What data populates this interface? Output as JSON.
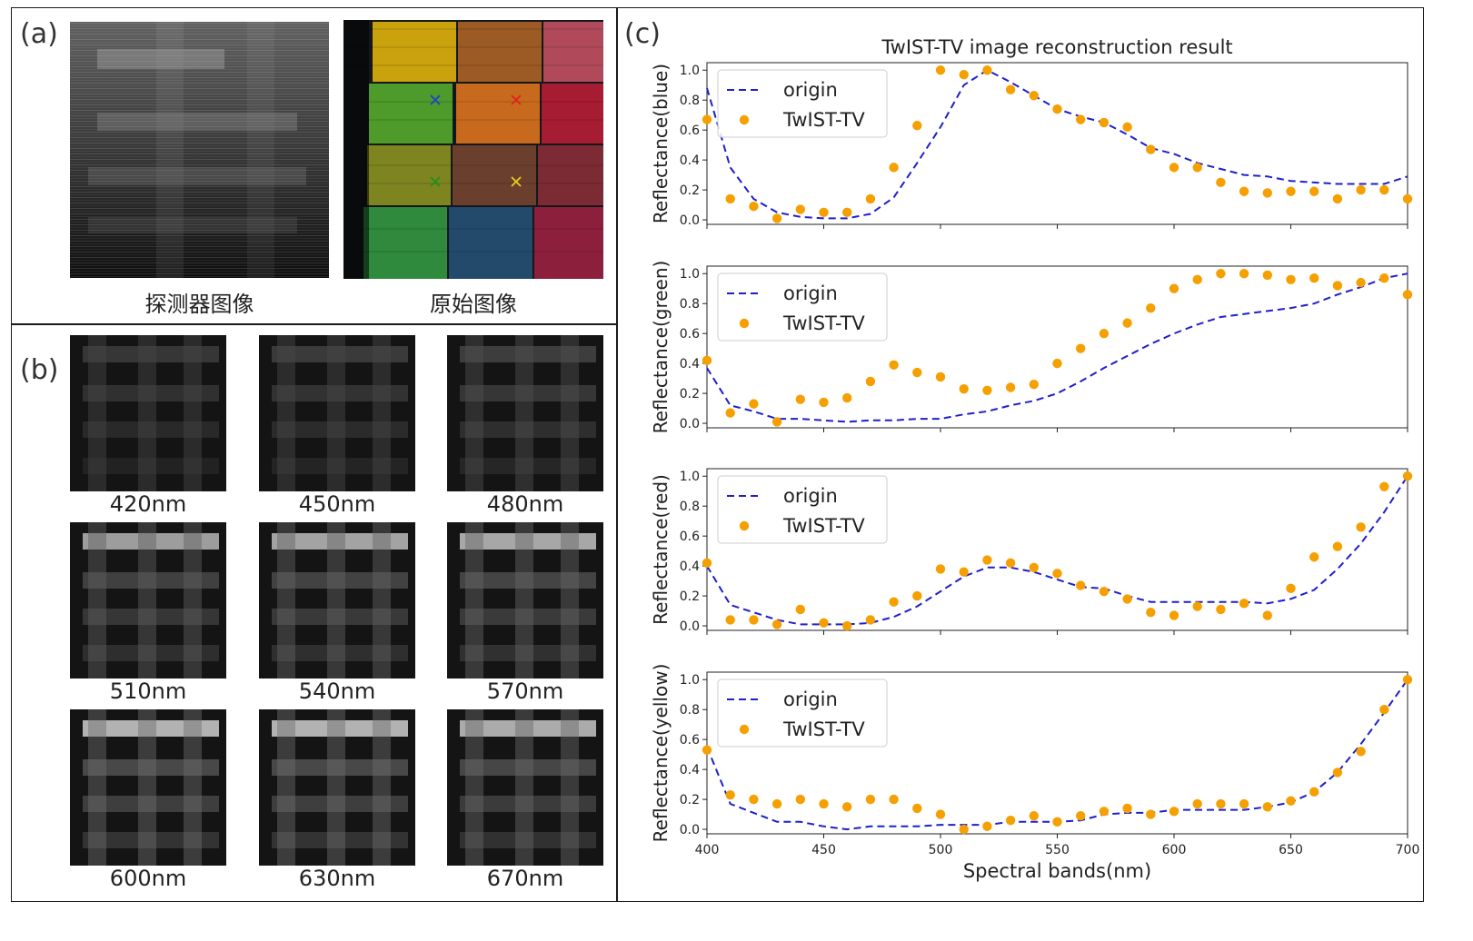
{
  "panels": {
    "a": {
      "label": "(a)",
      "detector_caption": "探测器图像",
      "original_caption": "原始图像",
      "marker_colors": [
        "#1f3fd0",
        "#e02020",
        "#1f8f1f",
        "#e8d020"
      ]
    },
    "b": {
      "label": "(b)",
      "bands": [
        "420nm",
        "450nm",
        "480nm",
        "510nm",
        "540nm",
        "570nm",
        "600nm",
        "630nm",
        "670nm"
      ]
    },
    "c": {
      "label": "(c)"
    }
  },
  "chart_data": [
    {
      "type": "line",
      "title": "TwIST-TV image reconstruction result",
      "ylabel": "Reflectance(blue)",
      "xlabel": "",
      "xlim": [
        400,
        700
      ],
      "ylim": [
        -0.03,
        1.05
      ],
      "yticks": [
        "0.0",
        "0.2",
        "0.4",
        "0.6",
        "0.8",
        "1.0"
      ],
      "legend": "upper-left",
      "series": [
        {
          "name": "origin",
          "style": "dashed",
          "color": "#1f1fcc",
          "x": [
            400,
            410,
            420,
            430,
            440,
            450,
            460,
            470,
            480,
            490,
            500,
            510,
            520,
            530,
            540,
            550,
            560,
            570,
            580,
            590,
            600,
            610,
            620,
            630,
            640,
            650,
            660,
            670,
            680,
            690,
            700
          ],
          "y": [
            0.88,
            0.35,
            0.14,
            0.05,
            0.02,
            0.01,
            0.01,
            0.04,
            0.15,
            0.38,
            0.62,
            0.9,
            1.0,
            0.92,
            0.83,
            0.74,
            0.69,
            0.65,
            0.57,
            0.48,
            0.44,
            0.38,
            0.34,
            0.3,
            0.29,
            0.26,
            0.25,
            0.24,
            0.24,
            0.24,
            0.29
          ]
        },
        {
          "name": "TwIST-TV",
          "style": "marker",
          "color": "#f5a000",
          "x": [
            400,
            410,
            420,
            430,
            440,
            450,
            460,
            470,
            480,
            490,
            500,
            510,
            520,
            530,
            540,
            550,
            560,
            570,
            580,
            590,
            600,
            610,
            620,
            630,
            640,
            650,
            660,
            670,
            680,
            690,
            700
          ],
          "y": [
            0.67,
            0.14,
            0.09,
            0.01,
            0.07,
            0.05,
            0.05,
            0.14,
            0.35,
            0.63,
            1.0,
            0.97,
            1.0,
            0.87,
            0.83,
            0.74,
            0.67,
            0.65,
            0.62,
            0.47,
            0.35,
            0.35,
            0.25,
            0.19,
            0.18,
            0.19,
            0.19,
            0.14,
            0.2,
            0.2,
            0.14
          ]
        }
      ]
    },
    {
      "type": "line",
      "title": "",
      "ylabel": "Reflectance(green)",
      "xlabel": "",
      "xlim": [
        400,
        700
      ],
      "ylim": [
        -0.03,
        1.05
      ],
      "yticks": [
        "0.0",
        "0.2",
        "0.4",
        "0.6",
        "0.8",
        "1.0"
      ],
      "legend": "upper-left",
      "series": [
        {
          "name": "origin",
          "style": "dashed",
          "color": "#1f1fcc",
          "x": [
            400,
            410,
            420,
            430,
            440,
            450,
            460,
            470,
            480,
            490,
            500,
            510,
            520,
            530,
            540,
            550,
            560,
            570,
            580,
            590,
            600,
            610,
            620,
            630,
            640,
            650,
            660,
            670,
            680,
            690,
            700
          ],
          "y": [
            0.37,
            0.12,
            0.08,
            0.03,
            0.03,
            0.02,
            0.01,
            0.02,
            0.02,
            0.03,
            0.03,
            0.06,
            0.08,
            0.12,
            0.15,
            0.2,
            0.28,
            0.37,
            0.45,
            0.53,
            0.6,
            0.66,
            0.71,
            0.73,
            0.75,
            0.77,
            0.8,
            0.86,
            0.91,
            0.97,
            1.0
          ]
        },
        {
          "name": "TwIST-TV",
          "style": "marker",
          "color": "#f5a000",
          "x": [
            400,
            410,
            420,
            430,
            440,
            450,
            460,
            470,
            480,
            490,
            500,
            510,
            520,
            530,
            540,
            550,
            560,
            570,
            580,
            590,
            600,
            610,
            620,
            630,
            640,
            650,
            660,
            670,
            680,
            690,
            700
          ],
          "y": [
            0.42,
            0.07,
            0.13,
            0.01,
            0.16,
            0.14,
            0.17,
            0.28,
            0.39,
            0.34,
            0.31,
            0.23,
            0.22,
            0.24,
            0.26,
            0.4,
            0.5,
            0.6,
            0.67,
            0.77,
            0.9,
            0.96,
            1.0,
            1.0,
            0.99,
            0.96,
            0.97,
            0.92,
            0.94,
            0.97,
            0.86
          ]
        }
      ]
    },
    {
      "type": "line",
      "title": "",
      "ylabel": "Reflectance(red)",
      "xlabel": "",
      "xlim": [
        400,
        700
      ],
      "ylim": [
        -0.03,
        1.05
      ],
      "yticks": [
        "0.0",
        "0.2",
        "0.4",
        "0.6",
        "0.8",
        "1.0"
      ],
      "legend": "upper-left",
      "series": [
        {
          "name": "origin",
          "style": "dashed",
          "color": "#1f1fcc",
          "x": [
            400,
            410,
            420,
            430,
            440,
            450,
            460,
            470,
            480,
            490,
            500,
            510,
            520,
            530,
            540,
            550,
            560,
            570,
            580,
            590,
            600,
            610,
            620,
            630,
            640,
            650,
            660,
            670,
            680,
            690,
            700
          ],
          "y": [
            0.4,
            0.14,
            0.09,
            0.04,
            0.01,
            0.01,
            0.01,
            0.02,
            0.06,
            0.13,
            0.23,
            0.33,
            0.39,
            0.39,
            0.36,
            0.31,
            0.26,
            0.25,
            0.2,
            0.16,
            0.16,
            0.16,
            0.16,
            0.16,
            0.15,
            0.18,
            0.24,
            0.38,
            0.55,
            0.76,
            1.0
          ]
        },
        {
          "name": "TwIST-TV",
          "style": "marker",
          "color": "#f5a000",
          "x": [
            400,
            410,
            420,
            430,
            440,
            450,
            460,
            470,
            480,
            490,
            500,
            510,
            520,
            530,
            540,
            550,
            560,
            570,
            580,
            590,
            600,
            610,
            620,
            630,
            640,
            650,
            660,
            670,
            680,
            690,
            700
          ],
          "y": [
            0.42,
            0.04,
            0.04,
            0.01,
            0.11,
            0.02,
            0.0,
            0.04,
            0.16,
            0.2,
            0.38,
            0.36,
            0.44,
            0.42,
            0.39,
            0.35,
            0.27,
            0.23,
            0.18,
            0.09,
            0.07,
            0.13,
            0.11,
            0.15,
            0.07,
            0.25,
            0.46,
            0.53,
            0.66,
            0.93,
            1.0
          ]
        }
      ]
    },
    {
      "type": "line",
      "title": "",
      "ylabel": "Reflectance(yellow)",
      "xlabel": "Spectral bands(nm)",
      "xlim": [
        400,
        700
      ],
      "ylim": [
        -0.03,
        1.05
      ],
      "xticks": [
        "400",
        "450",
        "500",
        "550",
        "600",
        "650",
        "700"
      ],
      "yticks": [
        "0.0",
        "0.2",
        "0.4",
        "0.6",
        "0.8",
        "1.0"
      ],
      "legend": "upper-left",
      "series": [
        {
          "name": "origin",
          "style": "dashed",
          "color": "#1f1fcc",
          "x": [
            400,
            410,
            420,
            430,
            440,
            450,
            460,
            470,
            480,
            490,
            500,
            510,
            520,
            530,
            540,
            550,
            560,
            570,
            580,
            590,
            600,
            610,
            620,
            630,
            640,
            650,
            660,
            670,
            680,
            690,
            700
          ],
          "y": [
            0.55,
            0.17,
            0.11,
            0.05,
            0.05,
            0.02,
            0.0,
            0.02,
            0.02,
            0.02,
            0.03,
            0.03,
            0.03,
            0.05,
            0.05,
            0.05,
            0.06,
            0.1,
            0.11,
            0.11,
            0.13,
            0.13,
            0.13,
            0.13,
            0.15,
            0.18,
            0.25,
            0.38,
            0.57,
            0.78,
            1.0
          ]
        },
        {
          "name": "TwIST-TV",
          "style": "marker",
          "color": "#f5a000",
          "x": [
            400,
            410,
            420,
            430,
            440,
            450,
            460,
            470,
            480,
            490,
            500,
            510,
            520,
            530,
            540,
            550,
            560,
            570,
            580,
            590,
            600,
            610,
            620,
            630,
            640,
            650,
            660,
            670,
            680,
            690,
            700
          ],
          "y": [
            0.53,
            0.23,
            0.2,
            0.17,
            0.2,
            0.17,
            0.15,
            0.2,
            0.2,
            0.14,
            0.1,
            0.0,
            0.02,
            0.06,
            0.09,
            0.05,
            0.09,
            0.12,
            0.14,
            0.1,
            0.12,
            0.17,
            0.17,
            0.17,
            0.15,
            0.19,
            0.25,
            0.38,
            0.52,
            0.8,
            1.0
          ]
        }
      ]
    }
  ]
}
